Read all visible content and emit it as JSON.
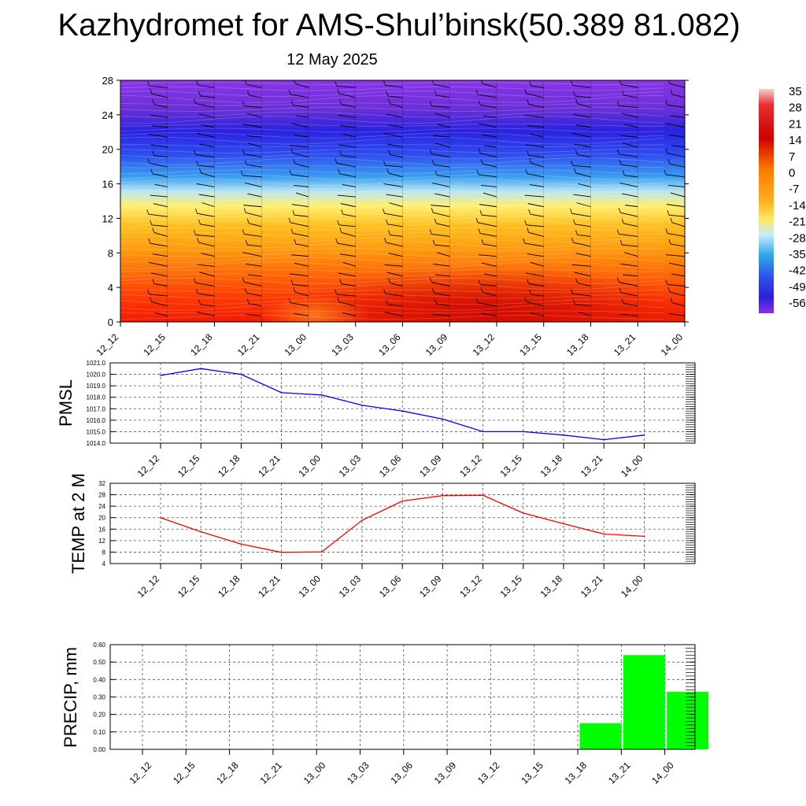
{
  "header": {
    "title": "Kazhydromet for AMS-Shul’binsk(50.389 81.082)",
    "subtitle": "12 May 2025"
  },
  "time_labels": [
    "12_12",
    "12_15",
    "12_18",
    "12_21",
    "13_00",
    "13_03",
    "13_06",
    "13_09",
    "13_12",
    "13_15",
    "13_18",
    "13_21",
    "14_00"
  ],
  "colors": {
    "pmsl_line": "#0000ff",
    "temp_line": "#ff0000",
    "precip_bar": "#00ff00",
    "grid": "#555555"
  },
  "chart_data": [
    {
      "type": "heatmap",
      "title": "",
      "xlabel": "",
      "ylabel": "",
      "x": [
        "12_12",
        "12_15",
        "12_18",
        "12_21",
        "13_00",
        "13_03",
        "13_06",
        "13_09",
        "13_12",
        "13_15",
        "13_18",
        "13_21",
        "14_00"
      ],
      "ylim": [
        0,
        28
      ],
      "yticks": [
        0,
        4,
        8,
        12,
        16,
        20,
        24,
        28
      ],
      "colorbar": {
        "labels": [
          "35",
          "28",
          "21",
          "14",
          "7",
          "0",
          "-7",
          "-14",
          "-21",
          "-28",
          "-35",
          "-42",
          "-49",
          "-56"
        ],
        "levels": [
          35,
          28,
          21,
          14,
          7,
          0,
          -7,
          -14,
          -21,
          -28,
          -35,
          -42,
          -49,
          -56
        ]
      },
      "grid": false
    },
    {
      "type": "line",
      "title": "",
      "ylabel": "PMSL",
      "x": [
        "12_12",
        "12_15",
        "12_18",
        "12_21",
        "13_00",
        "13_03",
        "13_06",
        "13_09",
        "13_12",
        "13_15",
        "13_18",
        "13_21",
        "14_00"
      ],
      "series": [
        {
          "values": [
            1019.9,
            1020.5,
            1020.0,
            1018.4,
            1018.2,
            1017.3,
            1016.8,
            1016.1,
            1015.0,
            1015.0,
            1014.7,
            1014.3,
            1014.7
          ]
        }
      ],
      "ylim": [
        1014.0,
        1021.0
      ],
      "yticks": [
        "1014.0",
        "1015.0",
        "1016.0",
        "1017.0",
        "1018.0",
        "1019.0",
        "1020.0",
        "1021.0"
      ],
      "grid": true
    },
    {
      "type": "line",
      "title": "",
      "ylabel": "TEMP at 2 M",
      "x": [
        "12_12",
        "12_15",
        "12_18",
        "12_21",
        "13_00",
        "13_03",
        "13_06",
        "13_09",
        "13_12",
        "13_15",
        "13_18",
        "13_21",
        "14_00"
      ],
      "series": [
        {
          "values": [
            20,
            15.1,
            10.8,
            7.9,
            8.1,
            19.1,
            25.8,
            27.7,
            27.8,
            21.6,
            17.9,
            14.3,
            13.5
          ]
        }
      ],
      "ylim": [
        4,
        32
      ],
      "yticks": [
        "4",
        "8",
        "12",
        "16",
        "20",
        "24",
        "28",
        "32"
      ],
      "grid": true
    },
    {
      "type": "bar",
      "title": "",
      "ylabel": "PRECIP, mm",
      "categories": [
        "12_12",
        "12_15",
        "12_18",
        "12_21",
        "13_00",
        "13_03",
        "13_06",
        "13_09",
        "13_12",
        "13_15",
        "13_18",
        "13_21",
        "14_00"
      ],
      "values": [
        0,
        0,
        0,
        0,
        0,
        0,
        0,
        0,
        0,
        0,
        0.15,
        0.54,
        0.33
      ],
      "ylim": [
        0,
        0.6
      ],
      "yticks": [
        "0.00",
        "0.10",
        "0.20",
        "0.30",
        "0.40",
        "0.50",
        "0.60"
      ],
      "grid": true
    }
  ]
}
